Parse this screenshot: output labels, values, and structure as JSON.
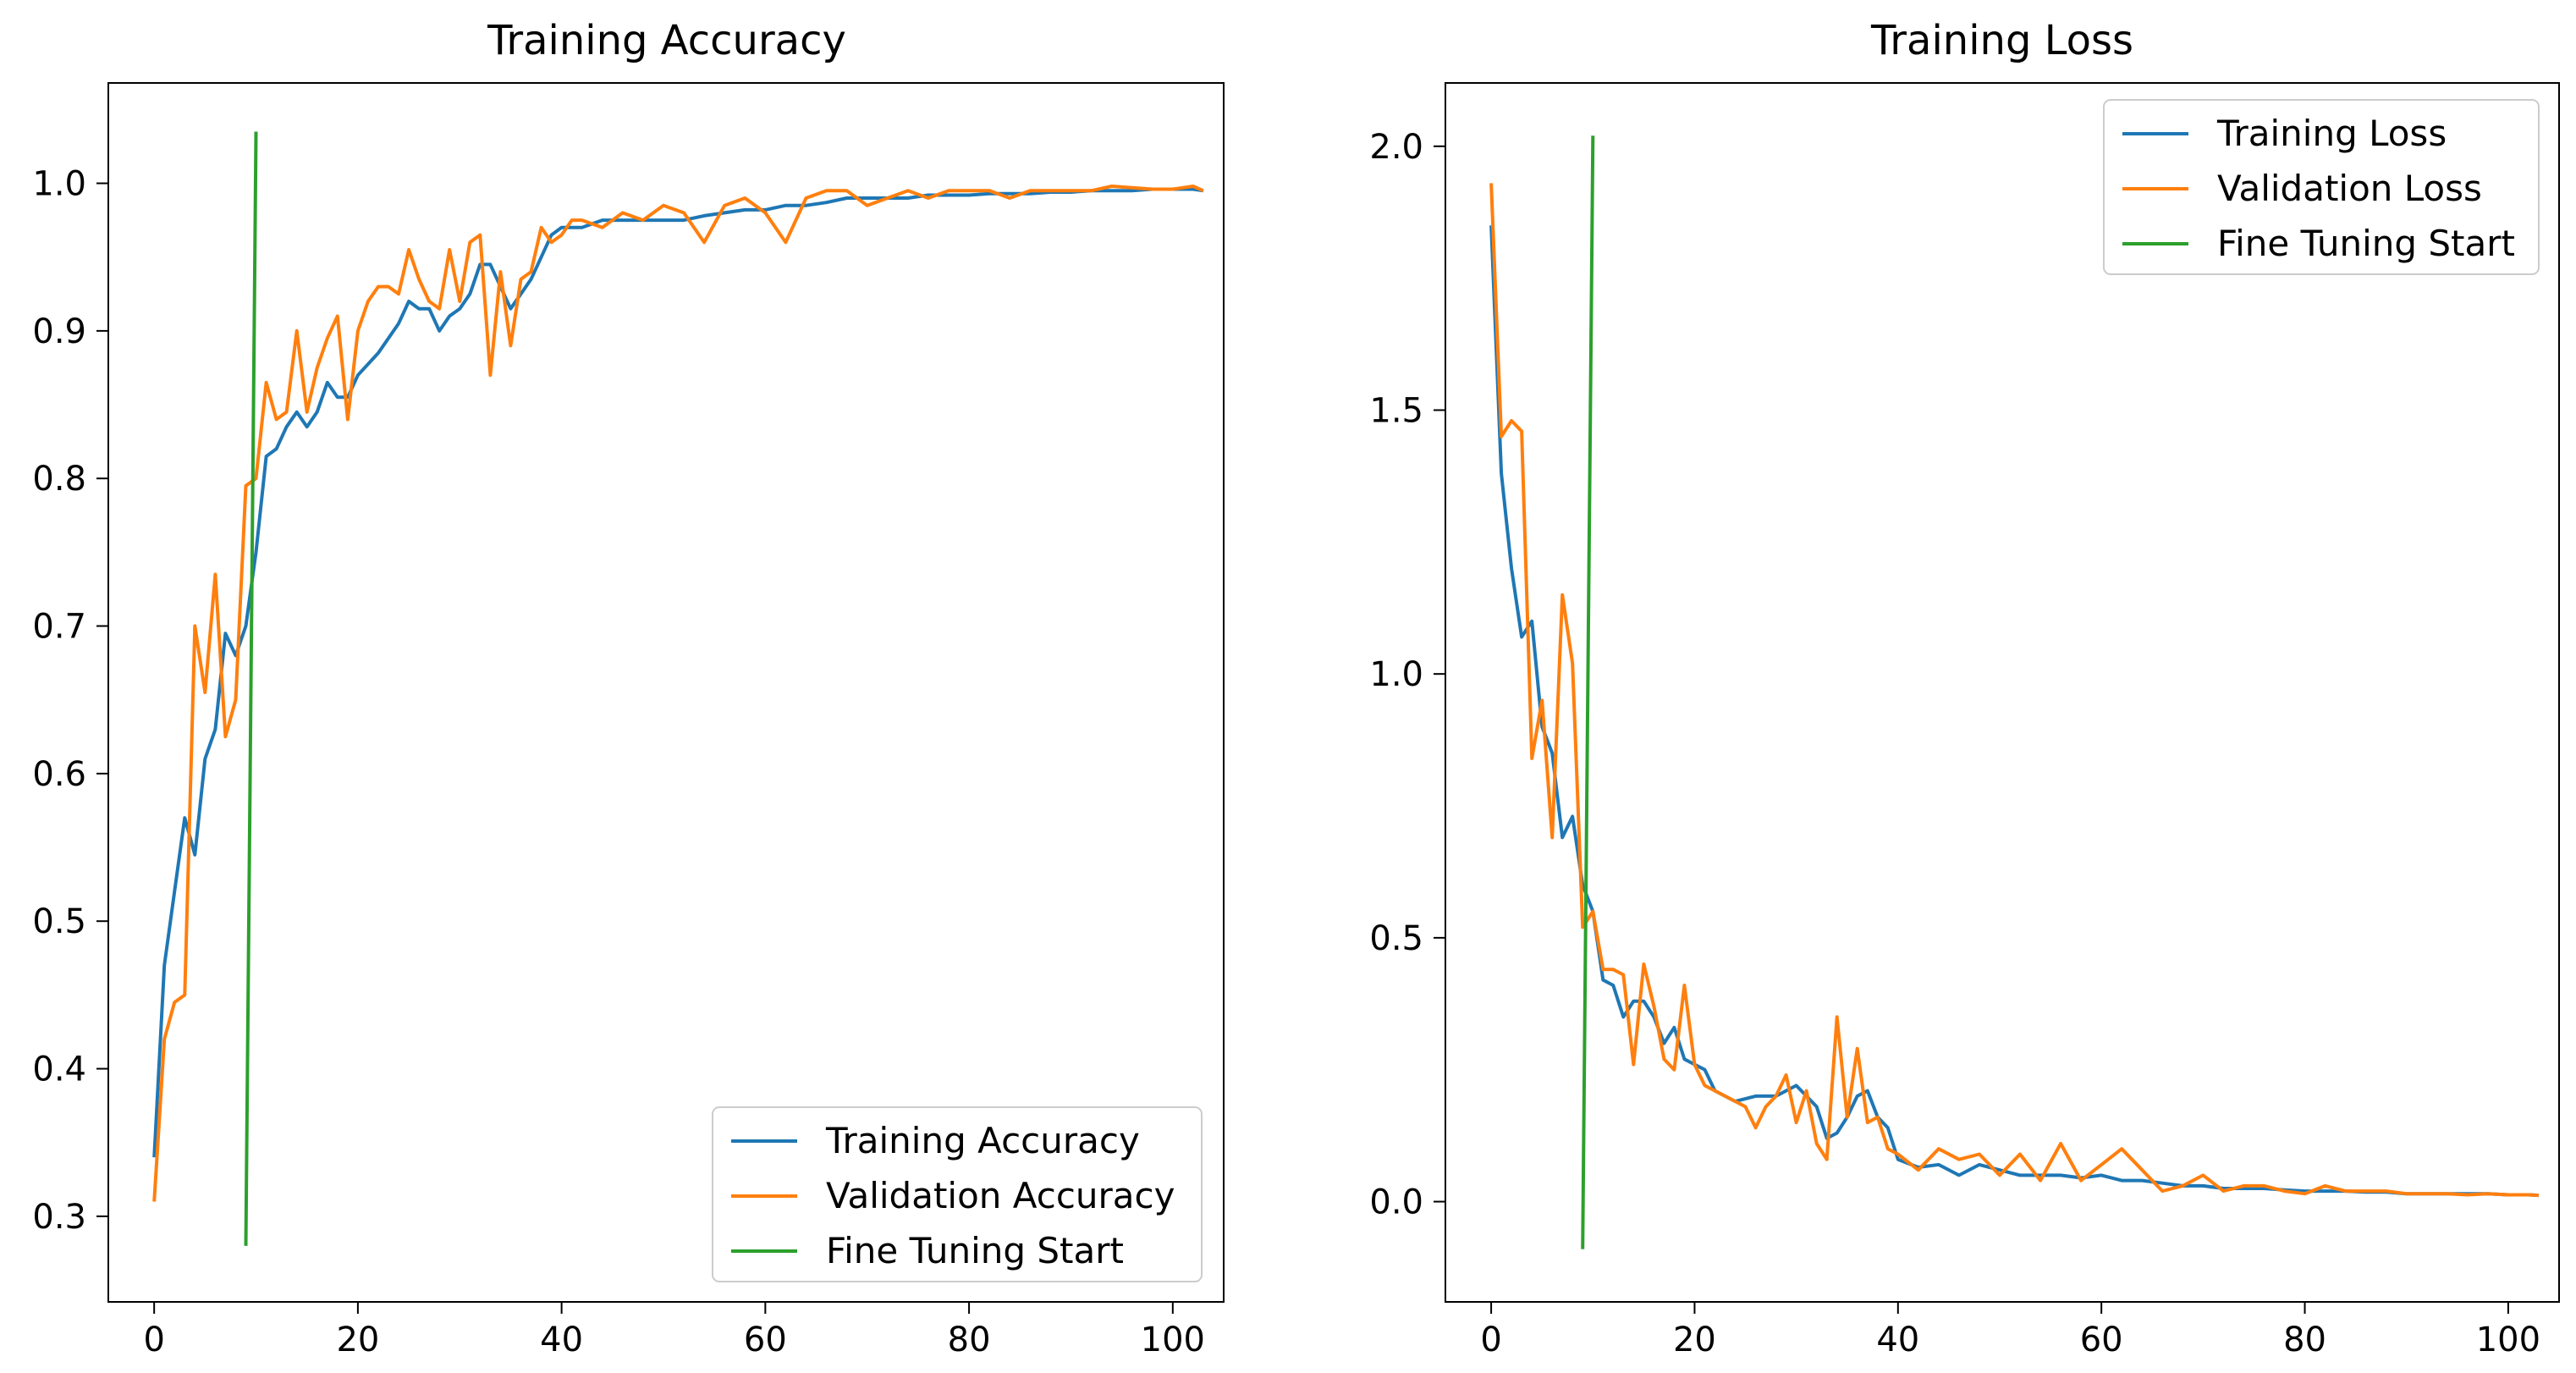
{
  "chart_data": [
    {
      "type": "line",
      "title": "Training Accuracy",
      "xlabel": "",
      "ylabel": "",
      "xlim": [
        -4.5,
        105
      ],
      "ylim": [
        0.242,
        1.068
      ],
      "xticks": [
        0,
        20,
        40,
        60,
        80,
        100
      ],
      "yticks": [
        0.3,
        0.4,
        0.5,
        0.6,
        0.7,
        0.8,
        0.9,
        1.0
      ],
      "xtick_labels": [
        "0",
        "20",
        "40",
        "60",
        "80",
        "100"
      ],
      "ytick_labels": [
        "0.3",
        "0.4",
        "0.5",
        "0.6",
        "0.7",
        "0.8",
        "0.9",
        "1.0"
      ],
      "grid": false,
      "legend": "lower-right",
      "series": [
        {
          "name": "Training Accuracy",
          "color": "#1f77b4",
          "x": [
            0,
            1,
            2,
            3,
            4,
            5,
            6,
            7,
            8,
            9,
            10,
            11,
            12,
            13,
            14,
            15,
            16,
            17,
            18,
            19,
            20,
            22,
            24,
            25,
            26,
            27,
            28,
            29,
            30,
            31,
            32,
            33,
            34,
            35,
            36,
            37,
            38,
            39,
            40,
            42,
            44,
            46,
            48,
            50,
            52,
            54,
            56,
            58,
            60,
            62,
            64,
            66,
            68,
            70,
            72,
            74,
            76,
            78,
            80,
            82,
            84,
            86,
            88,
            90,
            92,
            94,
            96,
            98,
            100,
            102,
            103
          ],
          "y": [
            0.34,
            0.47,
            0.52,
            0.57,
            0.545,
            0.61,
            0.63,
            0.695,
            0.68,
            0.7,
            0.75,
            0.815,
            0.82,
            0.835,
            0.845,
            0.835,
            0.845,
            0.865,
            0.855,
            0.855,
            0.87,
            0.885,
            0.905,
            0.92,
            0.915,
            0.915,
            0.9,
            0.91,
            0.915,
            0.925,
            0.945,
            0.945,
            0.93,
            0.915,
            0.925,
            0.935,
            0.95,
            0.965,
            0.97,
            0.97,
            0.975,
            0.975,
            0.975,
            0.975,
            0.975,
            0.978,
            0.98,
            0.982,
            0.982,
            0.985,
            0.985,
            0.987,
            0.99,
            0.99,
            0.99,
            0.99,
            0.992,
            0.992,
            0.992,
            0.993,
            0.993,
            0.993,
            0.994,
            0.994,
            0.995,
            0.995,
            0.995,
            0.996,
            0.996,
            0.996,
            0.995
          ]
        },
        {
          "name": "Validation Accuracy",
          "color": "#ff7f0e",
          "x": [
            0,
            1,
            2,
            3,
            4,
            5,
            6,
            7,
            8,
            9,
            10,
            11,
            12,
            13,
            14,
            15,
            16,
            17,
            18,
            19,
            20,
            21,
            22,
            23,
            24,
            25,
            26,
            27,
            28,
            29,
            30,
            31,
            32,
            33,
            34,
            35,
            36,
            37,
            38,
            39,
            40,
            41,
            42,
            44,
            46,
            48,
            50,
            52,
            54,
            56,
            58,
            60,
            62,
            64,
            66,
            68,
            70,
            72,
            74,
            76,
            78,
            80,
            82,
            84,
            86,
            88,
            90,
            92,
            94,
            96,
            98,
            100,
            102,
            103
          ],
          "y": [
            0.31,
            0.42,
            0.445,
            0.45,
            0.7,
            0.655,
            0.735,
            0.625,
            0.65,
            0.795,
            0.8,
            0.865,
            0.84,
            0.845,
            0.9,
            0.845,
            0.875,
            0.895,
            0.91,
            0.84,
            0.9,
            0.92,
            0.93,
            0.93,
            0.925,
            0.955,
            0.935,
            0.92,
            0.915,
            0.955,
            0.92,
            0.96,
            0.965,
            0.87,
            0.94,
            0.89,
            0.935,
            0.94,
            0.97,
            0.96,
            0.965,
            0.975,
            0.975,
            0.97,
            0.98,
            0.975,
            0.985,
            0.98,
            0.96,
            0.985,
            0.99,
            0.98,
            0.96,
            0.99,
            0.995,
            0.995,
            0.985,
            0.99,
            0.995,
            0.99,
            0.995,
            0.995,
            0.995,
            0.99,
            0.995,
            0.995,
            0.995,
            0.995,
            0.998,
            0.997,
            0.996,
            0.996,
            0.998,
            0.995
          ]
        },
        {
          "name": "Fine Tuning Start",
          "color": "#2ca02c",
          "x": [
            9,
            10
          ],
          "y": [
            0.28,
            1.035
          ]
        }
      ]
    },
    {
      "type": "line",
      "title": "Training Loss",
      "xlabel": "",
      "ylabel": "",
      "xlim": [
        -4.5,
        105
      ],
      "ylim": [
        -0.19,
        2.12
      ],
      "xticks": [
        0,
        20,
        40,
        60,
        80,
        100
      ],
      "yticks": [
        0.0,
        0.5,
        1.0,
        1.5,
        2.0
      ],
      "xtick_labels": [
        "0",
        "20",
        "40",
        "60",
        "80",
        "100"
      ],
      "ytick_labels": [
        "0.0",
        "0.5",
        "1.0",
        "1.5",
        "2.0"
      ],
      "grid": false,
      "legend": "top-right",
      "series": [
        {
          "name": "Training Loss",
          "color": "#1f77b4",
          "x": [
            0,
            1,
            2,
            3,
            4,
            5,
            6,
            7,
            8,
            9,
            10,
            11,
            12,
            13,
            14,
            15,
            16,
            17,
            18,
            19,
            20,
            21,
            22,
            24,
            26,
            28,
            30,
            32,
            33,
            34,
            35,
            36,
            37,
            38,
            39,
            40,
            42,
            44,
            46,
            48,
            50,
            52,
            54,
            56,
            58,
            60,
            62,
            64,
            66,
            68,
            70,
            72,
            74,
            76,
            78,
            80,
            82,
            84,
            86,
            88,
            90,
            92,
            94,
            96,
            98,
            100,
            102,
            103
          ],
          "y": [
            1.85,
            1.38,
            1.2,
            1.07,
            1.1,
            0.9,
            0.85,
            0.69,
            0.73,
            0.6,
            0.55,
            0.42,
            0.41,
            0.35,
            0.38,
            0.38,
            0.35,
            0.3,
            0.33,
            0.27,
            0.26,
            0.25,
            0.21,
            0.19,
            0.2,
            0.2,
            0.22,
            0.18,
            0.12,
            0.13,
            0.16,
            0.2,
            0.21,
            0.16,
            0.14,
            0.08,
            0.065,
            0.07,
            0.05,
            0.07,
            0.06,
            0.05,
            0.05,
            0.05,
            0.045,
            0.05,
            0.04,
            0.04,
            0.035,
            0.03,
            0.03,
            0.025,
            0.025,
            0.025,
            0.022,
            0.02,
            0.02,
            0.02,
            0.018,
            0.018,
            0.015,
            0.015,
            0.015,
            0.015,
            0.015,
            0.013,
            0.013,
            0.012
          ]
        },
        {
          "name": "Validation Loss",
          "color": "#ff7f0e",
          "x": [
            0,
            1,
            2,
            3,
            4,
            5,
            6,
            7,
            8,
            9,
            10,
            11,
            12,
            13,
            14,
            15,
            16,
            17,
            18,
            19,
            20,
            21,
            22,
            23,
            24,
            25,
            26,
            27,
            28,
            29,
            30,
            31,
            32,
            33,
            34,
            35,
            36,
            37,
            38,
            39,
            40,
            42,
            44,
            46,
            48,
            50,
            52,
            54,
            56,
            58,
            60,
            62,
            64,
            66,
            68,
            70,
            72,
            74,
            76,
            78,
            80,
            82,
            84,
            86,
            88,
            90,
            92,
            94,
            96,
            98,
            100,
            102,
            103
          ],
          "y": [
            1.93,
            1.45,
            1.48,
            1.46,
            0.84,
            0.95,
            0.69,
            1.15,
            1.02,
            0.52,
            0.55,
            0.44,
            0.44,
            0.43,
            0.26,
            0.45,
            0.37,
            0.27,
            0.25,
            0.41,
            0.26,
            0.22,
            0.21,
            0.2,
            0.19,
            0.18,
            0.14,
            0.18,
            0.2,
            0.24,
            0.15,
            0.21,
            0.11,
            0.08,
            0.35,
            0.16,
            0.29,
            0.15,
            0.16,
            0.1,
            0.09,
            0.06,
            0.1,
            0.08,
            0.09,
            0.05,
            0.09,
            0.04,
            0.11,
            0.04,
            0.07,
            0.1,
            0.06,
            0.02,
            0.03,
            0.05,
            0.02,
            0.03,
            0.03,
            0.02,
            0.015,
            0.03,
            0.02,
            0.02,
            0.02,
            0.015,
            0.015,
            0.015,
            0.013,
            0.015,
            0.013,
            0.013,
            0.012
          ]
        },
        {
          "name": "Fine Tuning Start",
          "color": "#2ca02c",
          "x": [
            9,
            10
          ],
          "y": [
            -0.09,
            2.02
          ]
        }
      ]
    }
  ]
}
